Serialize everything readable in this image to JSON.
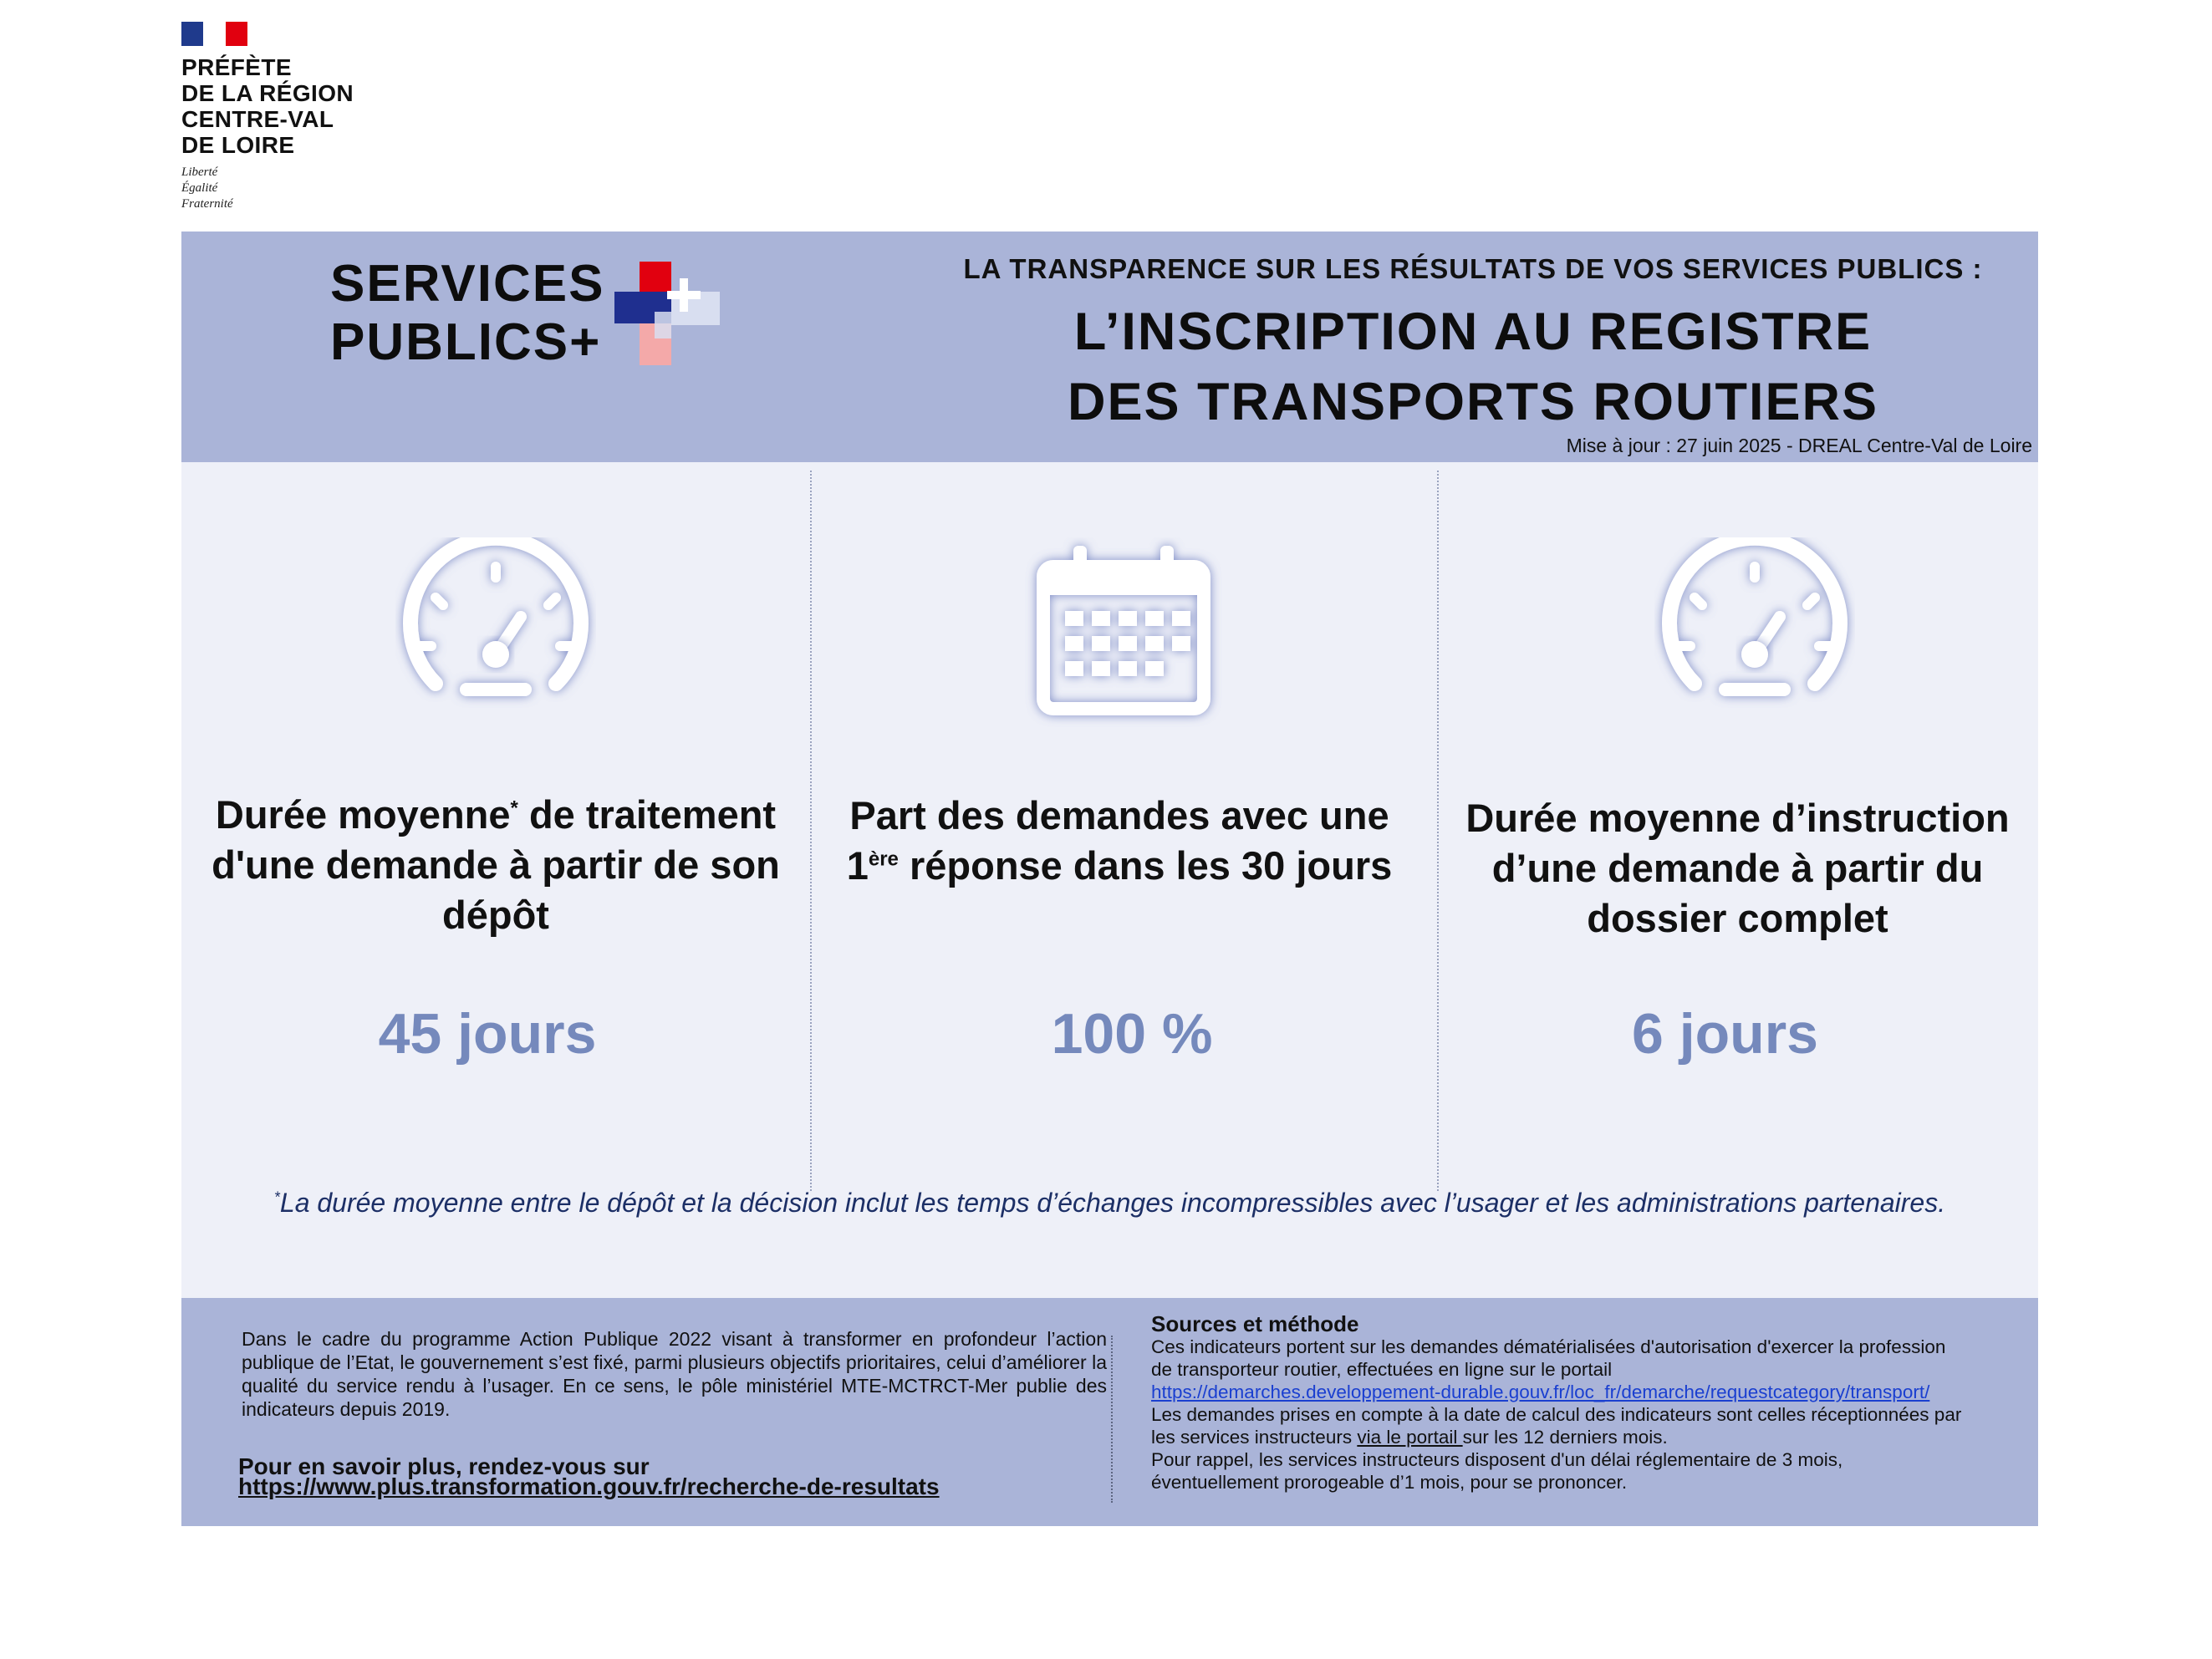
{
  "logo": {
    "name_lines": [
      "PRÉFÈTE",
      "DE LA RÉGION",
      "CENTRE-VAL",
      "DE LOIRE"
    ],
    "motto": [
      "Liberté",
      "Égalité",
      "Fraternité"
    ]
  },
  "header": {
    "brand_lines": [
      "SERVICES",
      "PUBLICS+"
    ],
    "tagline": "LA TRANSPARENCE SUR LES  RÉSULTATS DE VOS SERVICES PUBLICS :",
    "title_lines": [
      "L’INSCRIPTION AU REGISTRE",
      "DES TRANSPORTS ROUTIERS"
    ],
    "update": "Mise à jour : 27 juin 2025 - DREAL Centre-Val de Loire"
  },
  "indicators": [
    {
      "icon": "speedometer-icon",
      "label_lines": [
        "Durée moyenne",
        "de traitement",
        "d'une demande à partir de son",
        "dépôt"
      ],
      "label_mark": "*",
      "value": "45 jours"
    },
    {
      "icon": "calendar-icon",
      "label_lines": [
        "Part des demandes avec une",
        "1",
        "ère",
        " réponse dans les 30 jours"
      ],
      "value": "100 %"
    },
    {
      "icon": "speedometer-icon",
      "label_lines": [
        "Durée moyenne d’instruction",
        "d’une demande à partir du",
        "dossier complet"
      ],
      "value": "6 jours"
    }
  ],
  "footnote": {
    "mark": "*",
    "text": "La durée moyenne entre le dépôt et la décision inclut les temps d’échanges incompressibles avec l’usager et les administrations partenaires."
  },
  "bottom": {
    "intro": "Dans le cadre du programme Action Publique 2022 visant à transformer en profondeur l’action publique de l’Etat, le gouvernement s’est fixé, parmi plusieurs objectifs prioritaires, celui d’améliorer la qualité du service rendu à l’usager. En ce sens, le pôle ministériel MTE-MCTRCT-Mer publie des indicateurs depuis 2019.",
    "more_label": "Pour en savoir plus, rendez-vous sur",
    "more_url": "https://www.plus.transformation.gouv.fr/recherche-de-resultats",
    "sources": {
      "title": "Sources et méthode",
      "line1": "Ces indicateurs portent sur les demandes dématérialisées d'autorisation d'exercer la profession",
      "line2": "de transporteur routier, effectuées en ligne sur le portail",
      "url": "https://demarches.developpement-durable.gouv.fr/loc_fr/demarche/requestcategory/transport/",
      "line3": "Les demandes prises en compte à la date de calcul des indicateurs sont celles réceptionnées par",
      "line4_pre": "les services instructeurs ",
      "line4_link": "via le portail ",
      "line4_post": "sur les 12 derniers mois.",
      "line5": "Pour rappel, les services instructeurs disposent d'un délai réglementaire de 3 mois,",
      "line6": "éventuellement prorogeable d’1 mois, pour se prononcer."
    }
  },
  "colors": {
    "band": "#aab4d8",
    "panel": "#eef0f8",
    "value": "#7589bc",
    "footnote": "#1c2f66",
    "link": "#1a3fd0"
  }
}
